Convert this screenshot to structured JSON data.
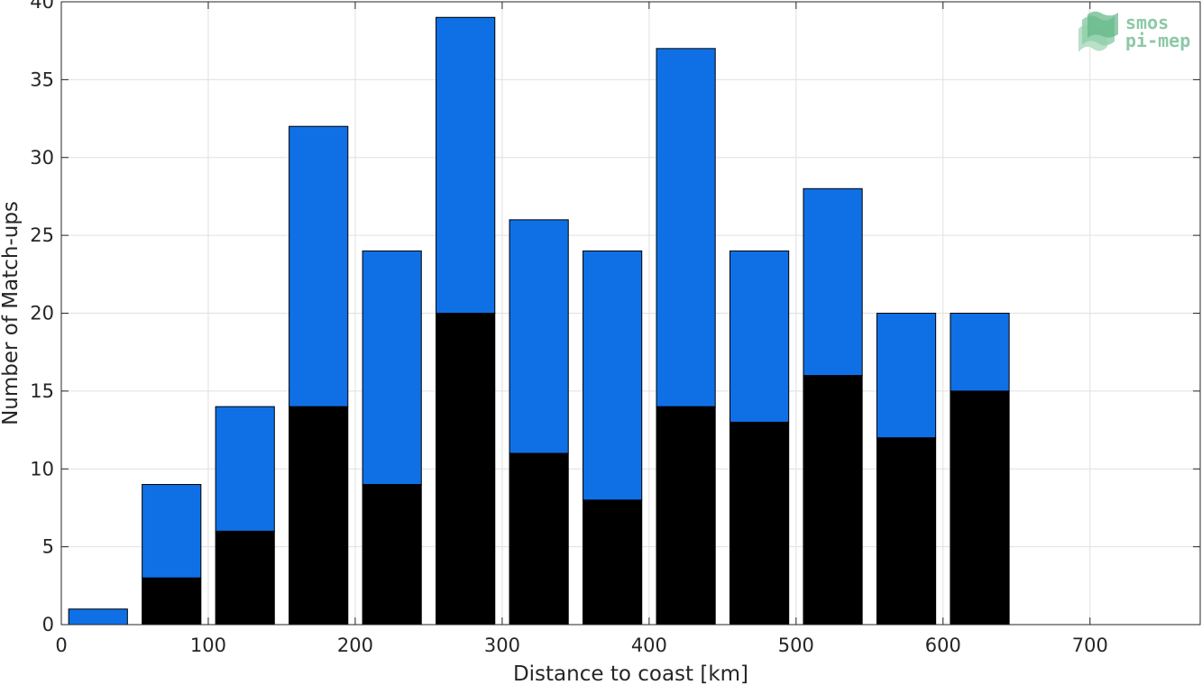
{
  "chart_data": {
    "type": "bar",
    "stacked": true,
    "x": [
      25,
      75,
      125,
      175,
      225,
      275,
      325,
      375,
      425,
      475,
      525,
      575,
      625
    ],
    "series": [
      {
        "color": "#000000",
        "values": [
          0,
          3,
          6,
          14,
          9,
          20,
          11,
          8,
          14,
          13,
          16,
          12,
          15
        ]
      },
      {
        "color": "#0f70e6",
        "values": [
          1,
          6,
          8,
          18,
          15,
          19,
          15,
          16,
          23,
          11,
          12,
          8,
          5
        ]
      }
    ],
    "xlabel": "Distance to coast [km]",
    "ylabel": "Number of Match-ups",
    "xlim": [
      0,
      775
    ],
    "ylim": [
      0,
      40
    ],
    "xticks": [
      0,
      100,
      200,
      300,
      400,
      500,
      600,
      700
    ],
    "yticks": [
      0,
      5,
      10,
      15,
      20,
      25,
      30,
      35,
      40
    ],
    "grid": true
  },
  "logo": {
    "line1": "smos",
    "line2": "pi-mep"
  }
}
